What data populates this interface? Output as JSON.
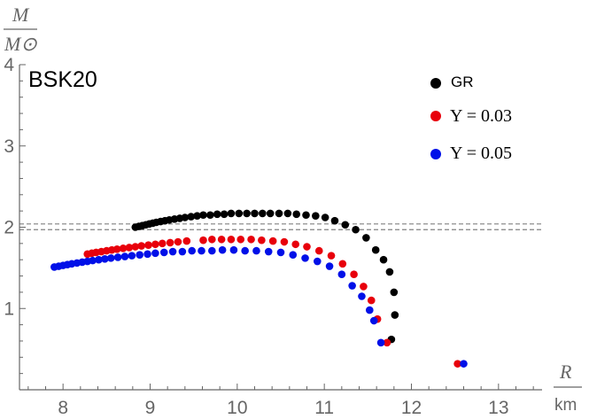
{
  "chart_data": {
    "type": "scatter",
    "title": "BSK20",
    "xlabel": "R",
    "xunit": "km",
    "ylabel": "M",
    "yunit": "M⊙",
    "xlim": [
      7.5,
      13.5
    ],
    "ylim": [
      0,
      4
    ],
    "xticks": [
      "8",
      "9",
      "10",
      "11",
      "12",
      "13"
    ],
    "yticks": [
      "1",
      "2",
      "3",
      "4"
    ],
    "reference_lines": [
      1.97,
      2.04
    ],
    "legend_position": "top-right",
    "colors": {
      "GR": "#000000",
      "U003": "#e8000b",
      "U005": "#0010e8",
      "ref": "#808080"
    },
    "series": [
      {
        "name": "GR",
        "label": "GR",
        "color": "#000000",
        "points": [
          [
            8.83,
            2.0
          ],
          [
            8.87,
            2.01
          ],
          [
            8.91,
            2.02
          ],
          [
            8.95,
            2.03
          ],
          [
            8.99,
            2.04
          ],
          [
            9.03,
            2.05
          ],
          [
            9.07,
            2.06
          ],
          [
            9.12,
            2.07
          ],
          [
            9.17,
            2.08
          ],
          [
            9.22,
            2.09
          ],
          [
            9.28,
            2.1
          ],
          [
            9.34,
            2.11
          ],
          [
            9.4,
            2.12
          ],
          [
            9.47,
            2.13
          ],
          [
            9.54,
            2.14
          ],
          [
            9.61,
            2.15
          ],
          [
            9.69,
            2.15
          ],
          [
            9.77,
            2.16
          ],
          [
            9.85,
            2.16
          ],
          [
            9.93,
            2.17
          ],
          [
            10.02,
            2.17
          ],
          [
            10.11,
            2.17
          ],
          [
            10.2,
            2.17
          ],
          [
            10.29,
            2.17
          ],
          [
            10.38,
            2.17
          ],
          [
            10.48,
            2.17
          ],
          [
            10.58,
            2.17
          ],
          [
            10.68,
            2.16
          ],
          [
            10.79,
            2.15
          ],
          [
            10.9,
            2.14
          ],
          [
            11.01,
            2.12
          ],
          [
            11.12,
            2.08
          ],
          [
            11.24,
            2.03
          ],
          [
            11.36,
            1.97
          ],
          [
            11.48,
            1.87
          ],
          [
            11.59,
            1.72
          ],
          [
            11.68,
            1.6
          ],
          [
            11.75,
            1.45
          ],
          [
            11.8,
            1.2
          ],
          [
            11.81,
            0.92
          ],
          [
            11.77,
            0.62
          ]
        ]
      },
      {
        "name": "U003",
        "label": "Υ = 0.03",
        "color": "#e8000b",
        "points": [
          [
            8.28,
            1.67
          ],
          [
            8.33,
            1.68
          ],
          [
            8.38,
            1.69
          ],
          [
            8.44,
            1.7
          ],
          [
            8.5,
            1.71
          ],
          [
            8.56,
            1.72
          ],
          [
            8.62,
            1.73
          ],
          [
            8.69,
            1.74
          ],
          [
            8.76,
            1.75
          ],
          [
            8.83,
            1.76
          ],
          [
            8.9,
            1.77
          ],
          [
            8.98,
            1.78
          ],
          [
            9.06,
            1.79
          ],
          [
            9.14,
            1.8
          ],
          [
            9.23,
            1.81
          ],
          [
            9.32,
            1.82
          ],
          [
            9.42,
            1.83
          ],
          [
            9.61,
            1.84
          ],
          [
            9.71,
            1.85
          ],
          [
            9.82,
            1.85
          ],
          [
            9.93,
            1.85
          ],
          [
            10.04,
            1.85
          ],
          [
            10.16,
            1.85
          ],
          [
            10.28,
            1.84
          ],
          [
            10.41,
            1.83
          ],
          [
            10.54,
            1.82
          ],
          [
            10.67,
            1.79
          ],
          [
            10.8,
            1.76
          ],
          [
            10.94,
            1.71
          ],
          [
            11.08,
            1.65
          ],
          [
            11.21,
            1.55
          ],
          [
            11.34,
            1.42
          ],
          [
            11.45,
            1.27
          ],
          [
            11.54,
            1.1
          ],
          [
            11.61,
            0.87
          ],
          [
            11.72,
            0.58
          ],
          [
            12.53,
            0.32
          ]
        ]
      },
      {
        "name": "U005",
        "label": "Υ = 0.05",
        "color": "#0010e8",
        "points": [
          [
            7.9,
            1.51
          ],
          [
            7.95,
            1.52
          ],
          [
            8.0,
            1.53
          ],
          [
            8.05,
            1.54
          ],
          [
            8.1,
            1.55
          ],
          [
            8.16,
            1.56
          ],
          [
            8.22,
            1.57
          ],
          [
            8.28,
            1.58
          ],
          [
            8.34,
            1.59
          ],
          [
            8.41,
            1.6
          ],
          [
            8.48,
            1.61
          ],
          [
            8.55,
            1.62
          ],
          [
            8.63,
            1.63
          ],
          [
            8.71,
            1.64
          ],
          [
            8.79,
            1.65
          ],
          [
            8.88,
            1.66
          ],
          [
            8.97,
            1.67
          ],
          [
            9.06,
            1.68
          ],
          [
            9.16,
            1.69
          ],
          [
            9.26,
            1.7
          ],
          [
            9.37,
            1.7
          ],
          [
            9.48,
            1.71
          ],
          [
            9.59,
            1.71
          ],
          [
            9.71,
            1.71
          ],
          [
            9.83,
            1.72
          ],
          [
            9.96,
            1.72
          ],
          [
            10.09,
            1.71
          ],
          [
            10.22,
            1.71
          ],
          [
            10.36,
            1.7
          ],
          [
            10.5,
            1.69
          ],
          [
            10.64,
            1.66
          ],
          [
            10.78,
            1.62
          ],
          [
            10.92,
            1.58
          ],
          [
            11.06,
            1.52
          ],
          [
            11.2,
            1.42
          ],
          [
            11.32,
            1.28
          ],
          [
            11.43,
            1.15
          ],
          [
            11.52,
            0.98
          ],
          [
            11.57,
            0.85
          ],
          [
            11.65,
            0.58
          ],
          [
            12.6,
            0.32
          ]
        ]
      }
    ]
  }
}
